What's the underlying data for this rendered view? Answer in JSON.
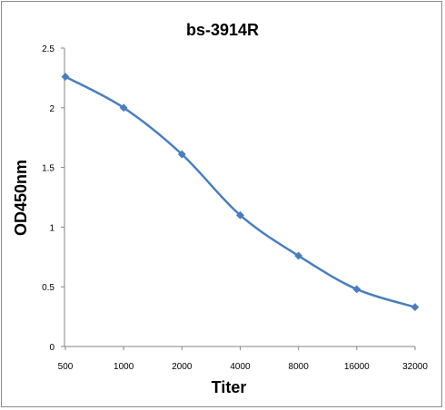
{
  "chart_data": {
    "type": "line",
    "title": "bs-3914R",
    "xlabel": "Titer",
    "ylabel": "OD450nm",
    "categories": [
      "500",
      "1000",
      "2000",
      "4000",
      "8000",
      "16000",
      "32000"
    ],
    "y_ticks": [
      "0",
      "0.5",
      "1",
      "1.5",
      "2",
      "2.5"
    ],
    "ylim": [
      0,
      2.5
    ],
    "grid": false,
    "legend": "none",
    "series": [
      {
        "values": [
          2.26,
          2.0,
          1.61,
          1.1,
          0.76,
          0.48,
          0.33
        ]
      }
    ],
    "colors": {
      "series": "#4a7ebb",
      "axis": "#868686"
    }
  }
}
